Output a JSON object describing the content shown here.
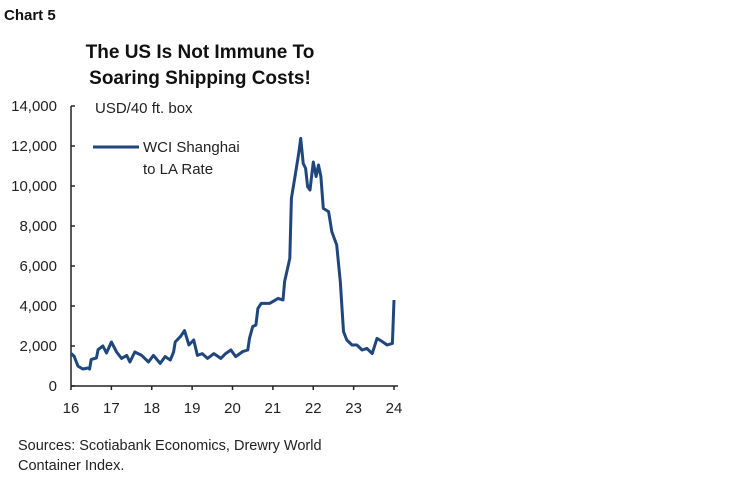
{
  "header": {
    "label": "Chart 5"
  },
  "footer": {
    "source_line1": "Sources: Scotiabank Economics, Drewry World",
    "source_line2": "Container Index."
  },
  "chart_data": {
    "type": "line",
    "title_line1": "The US Is Not Immune To",
    "title_line2": "Soaring Shipping Costs!",
    "ylabel": "USD/40 ft. box",
    "xlabel": "",
    "xlim": [
      16,
      24
    ],
    "ylim": [
      0,
      14000
    ],
    "x_ticks": [
      "16",
      "17",
      "18",
      "19",
      "20",
      "21",
      "22",
      "23",
      "24"
    ],
    "y_ticks": [
      "0",
      "2,000",
      "4,000",
      "6,000",
      "8,000",
      "10,000",
      "12,000",
      "14,000"
    ],
    "grid": false,
    "legend_position": "top-left",
    "colors": {
      "line": "#1f477d",
      "axis": "#222222"
    },
    "series": [
      {
        "name": "WCI Shanghai to LA Rate",
        "legend_line1": "WCI Shanghai",
        "legend_line2": "to LA Rate",
        "x": [
          16.0,
          16.08,
          16.17,
          16.29,
          16.42,
          16.46,
          16.5,
          16.63,
          16.67,
          16.79,
          16.88,
          17.0,
          17.13,
          17.25,
          17.38,
          17.46,
          17.58,
          17.75,
          17.92,
          18.04,
          18.21,
          18.33,
          18.46,
          18.54,
          18.58,
          18.71,
          18.81,
          18.92,
          19.04,
          19.13,
          19.25,
          19.38,
          19.54,
          19.71,
          19.83,
          19.96,
          20.08,
          20.25,
          20.38,
          20.42,
          20.5,
          20.58,
          20.63,
          20.71,
          20.92,
          21.13,
          21.25,
          21.29,
          21.42,
          21.46,
          21.54,
          21.64,
          21.69,
          21.75,
          21.81,
          21.86,
          21.92,
          22.0,
          22.07,
          22.13,
          22.19,
          22.25,
          22.38,
          22.46,
          22.58,
          22.67,
          22.75,
          22.83,
          22.96,
          23.08,
          23.21,
          23.33,
          23.46,
          23.58,
          23.71,
          23.83,
          23.96,
          24.0
        ],
        "y": [
          1630,
          1480,
          1000,
          850,
          900,
          850,
          1330,
          1400,
          1820,
          2000,
          1650,
          2200,
          1700,
          1380,
          1530,
          1200,
          1700,
          1530,
          1200,
          1530,
          1130,
          1470,
          1300,
          1700,
          2200,
          2470,
          2770,
          2050,
          2300,
          1530,
          1620,
          1380,
          1620,
          1380,
          1620,
          1800,
          1470,
          1720,
          1800,
          2380,
          2970,
          3050,
          3880,
          4130,
          4130,
          4380,
          4300,
          5220,
          6380,
          9380,
          10380,
          11630,
          12380,
          11130,
          10880,
          9970,
          9800,
          11200,
          10470,
          11050,
          10470,
          8880,
          8720,
          7720,
          7050,
          5220,
          2720,
          2300,
          2050,
          2050,
          1800,
          1880,
          1620,
          2380,
          2220,
          2050,
          2130,
          4300
        ]
      }
    ]
  }
}
